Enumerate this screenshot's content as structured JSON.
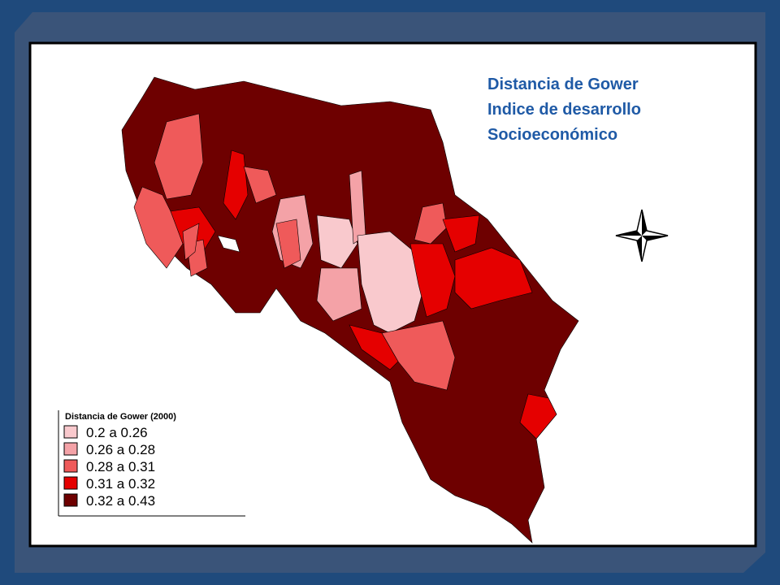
{
  "title": {
    "lines": [
      "Distancia de Gower",
      "Indice de desarrollo",
      "Socioeconómico"
    ]
  },
  "legend": {
    "title": "Distancia de Gower (2000)",
    "items": [
      {
        "label": "0.2    a 0.26",
        "color": "#f9c9cd"
      },
      {
        "label": "0.26  a 0.28",
        "color": "#f4a2a7"
      },
      {
        "label": "0.28  a 0.31",
        "color": "#ef5a5a"
      },
      {
        "label": "0.31  a 0.32",
        "color": "#e50000"
      },
      {
        "label": "0.32  a 0.43",
        "color": "#6e0000"
      }
    ]
  }
}
